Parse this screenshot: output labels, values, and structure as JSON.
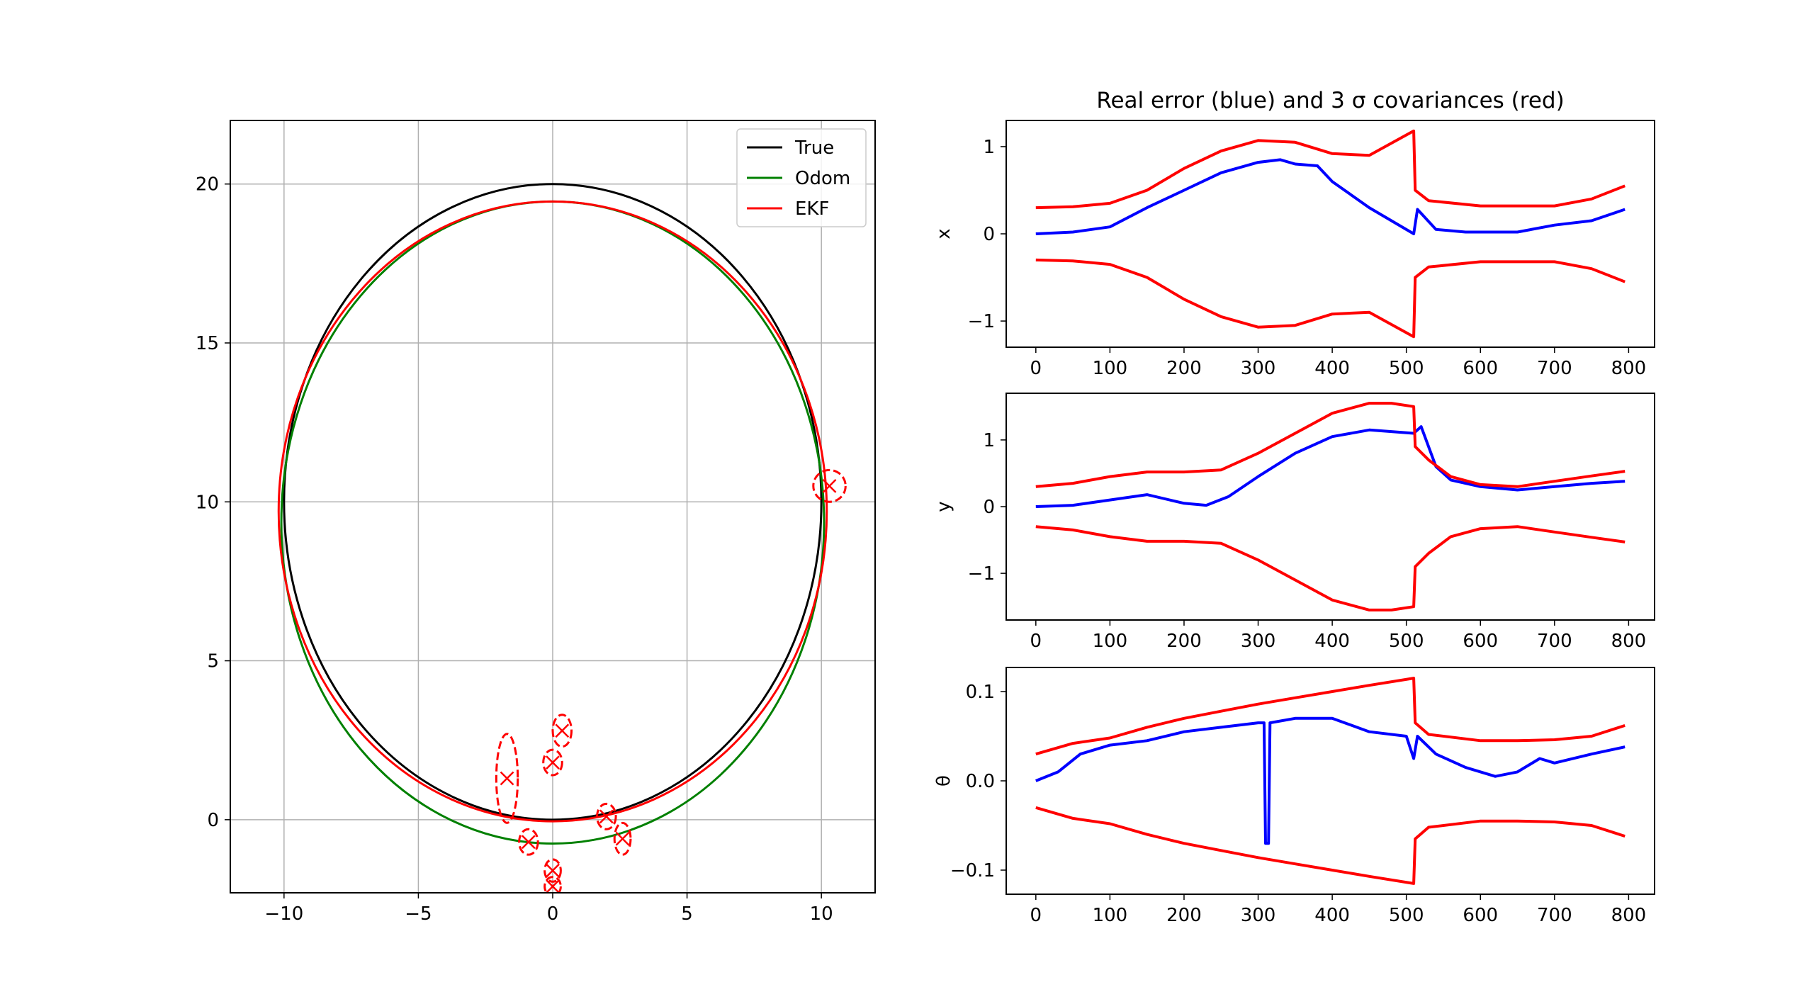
{
  "colors": {
    "true": "#000000",
    "odom": "#008000",
    "ekf": "#ff0000",
    "error": "#0000ff",
    "cov": "#ff0000",
    "grid": "#b0b0b0"
  },
  "chart_data": [
    {
      "type": "line",
      "legend": [
        "True",
        "Odom",
        "EKF"
      ],
      "legend_loc": "upper right",
      "grid": true,
      "xlim": [
        -12,
        12
      ],
      "ylim": [
        -2.3,
        22
      ],
      "xticks": [
        "−10",
        "−5",
        "0",
        "5",
        "10"
      ],
      "xtick_values": [
        -10,
        -5,
        0,
        5,
        10
      ],
      "yticks": [
        "0",
        "5",
        "10",
        "15",
        "20"
      ],
      "ytick_values": [
        0,
        5,
        10,
        15,
        20
      ],
      "series": [
        {
          "name": "True",
          "shape": "circle",
          "center": [
            0,
            10
          ],
          "radius_x": 10,
          "radius_y": 10
        },
        {
          "name": "Odom",
          "shape": "circle",
          "center": [
            0,
            9.35
          ],
          "radius_x": 10.1,
          "radius_y": 10.1
        },
        {
          "name": "EKF",
          "shape": "circle",
          "center": [
            0,
            9.7
          ],
          "radius_x": 10.2,
          "radius_y": 9.75
        }
      ],
      "landmark_ellipses": [
        {
          "x": 10.3,
          "y": 10.5,
          "rx": 0.6,
          "ry": 0.5
        },
        {
          "x": -1.7,
          "y": 1.3,
          "rx": 0.4,
          "ry": 1.4
        },
        {
          "x": 0.35,
          "y": 2.8,
          "rx": 0.35,
          "ry": 0.5
        },
        {
          "x": 0,
          "y": 1.8,
          "rx": 0.35,
          "ry": 0.4
        },
        {
          "x": 2,
          "y": 0.1,
          "rx": 0.35,
          "ry": 0.4
        },
        {
          "x": 2.6,
          "y": -0.6,
          "rx": 0.3,
          "ry": 0.5
        },
        {
          "x": -0.9,
          "y": -0.7,
          "rx": 0.35,
          "ry": 0.4
        },
        {
          "x": 0,
          "y": -1.6,
          "rx": 0.3,
          "ry": 0.35
        },
        {
          "x": 0,
          "y": -2.1,
          "rx": 0.3,
          "ry": 0.3
        }
      ]
    },
    {
      "type": "line",
      "title": "Real error (blue) and 3 σ covariances (red)",
      "ylabel": "x",
      "xlim": [
        -40,
        835
      ],
      "ylim": [
        -1.3,
        1.3
      ],
      "xticks": [
        "0",
        "100",
        "200",
        "300",
        "400",
        "500",
        "600",
        "700",
        "800"
      ],
      "xtick_values": [
        0,
        100,
        200,
        300,
        400,
        500,
        600,
        700,
        800
      ],
      "yticks": [
        "−1",
        "0",
        "1"
      ],
      "ytick_values": [
        -1,
        0,
        1
      ],
      "series": [
        {
          "name": "error",
          "x": [
            0,
            50,
            100,
            150,
            200,
            250,
            300,
            330,
            350,
            380,
            400,
            450,
            510,
            515,
            540,
            580,
            650,
            700,
            750,
            795
          ],
          "y": [
            0,
            0.02,
            0.08,
            0.3,
            0.5,
            0.7,
            0.82,
            0.85,
            0.8,
            0.78,
            0.6,
            0.3,
            0.0,
            0.28,
            0.05,
            0.02,
            0.02,
            0.1,
            0.15,
            0.28
          ]
        },
        {
          "name": "cov_upper",
          "x": [
            0,
            50,
            100,
            150,
            200,
            250,
            300,
            350,
            400,
            450,
            510,
            512,
            530,
            600,
            700,
            750,
            795
          ],
          "y": [
            0.3,
            0.31,
            0.35,
            0.5,
            0.75,
            0.95,
            1.07,
            1.05,
            0.92,
            0.9,
            1.18,
            0.5,
            0.38,
            0.32,
            0.32,
            0.4,
            0.55
          ]
        },
        {
          "name": "cov_lower",
          "x": [
            0,
            50,
            100,
            150,
            200,
            250,
            300,
            350,
            400,
            450,
            510,
            512,
            530,
            600,
            700,
            750,
            795
          ],
          "y": [
            -0.3,
            -0.31,
            -0.35,
            -0.5,
            -0.75,
            -0.95,
            -1.07,
            -1.05,
            -0.92,
            -0.9,
            -1.18,
            -0.5,
            -0.38,
            -0.32,
            -0.32,
            -0.4,
            -0.55
          ]
        }
      ]
    },
    {
      "type": "line",
      "ylabel": "y",
      "xlim": [
        -40,
        835
      ],
      "ylim": [
        -1.7,
        1.7
      ],
      "xticks": [
        "0",
        "100",
        "200",
        "300",
        "400",
        "500",
        "600",
        "700",
        "800"
      ],
      "xtick_values": [
        0,
        100,
        200,
        300,
        400,
        500,
        600,
        700,
        800
      ],
      "yticks": [
        "−1",
        "0",
        "1"
      ],
      "ytick_values": [
        -1,
        0,
        1
      ],
      "series": [
        {
          "name": "error",
          "x": [
            0,
            50,
            100,
            150,
            200,
            230,
            260,
            300,
            350,
            400,
            450,
            510,
            520,
            540,
            560,
            600,
            650,
            700,
            750,
            795
          ],
          "y": [
            0,
            0.02,
            0.1,
            0.18,
            0.05,
            0.02,
            0.15,
            0.45,
            0.8,
            1.05,
            1.15,
            1.1,
            1.2,
            0.6,
            0.4,
            0.3,
            0.25,
            0.3,
            0.35,
            0.38
          ]
        },
        {
          "name": "cov_upper",
          "x": [
            0,
            50,
            100,
            150,
            200,
            250,
            300,
            350,
            400,
            450,
            480,
            510,
            512,
            530,
            560,
            600,
            650,
            700,
            750,
            795
          ],
          "y": [
            0.3,
            0.35,
            0.45,
            0.52,
            0.52,
            0.55,
            0.8,
            1.1,
            1.4,
            1.55,
            1.55,
            1.5,
            0.9,
            0.7,
            0.45,
            0.33,
            0.3,
            0.38,
            0.46,
            0.53
          ]
        },
        {
          "name": "cov_lower",
          "x": [
            0,
            50,
            100,
            150,
            200,
            250,
            300,
            350,
            400,
            450,
            480,
            510,
            512,
            530,
            560,
            600,
            650,
            700,
            750,
            795
          ],
          "y": [
            -0.3,
            -0.35,
            -0.45,
            -0.52,
            -0.52,
            -0.55,
            -0.8,
            -1.1,
            -1.4,
            -1.55,
            -1.55,
            -1.5,
            -0.9,
            -0.7,
            -0.45,
            -0.33,
            -0.3,
            -0.38,
            -0.46,
            -0.53
          ]
        }
      ]
    },
    {
      "type": "line",
      "ylabel": "θ",
      "xlim": [
        -40,
        835
      ],
      "ylim": [
        -0.127,
        0.127
      ],
      "xticks": [
        "0",
        "100",
        "200",
        "300",
        "400",
        "500",
        "600",
        "700",
        "800"
      ],
      "xtick_values": [
        0,
        100,
        200,
        300,
        400,
        500,
        600,
        700,
        800
      ],
      "yticks": [
        "−0.1",
        "0.0",
        "0.1"
      ],
      "ytick_values": [
        -0.1,
        0.0,
        0.1
      ],
      "series": [
        {
          "name": "error",
          "x": [
            0,
            30,
            60,
            100,
            150,
            200,
            250,
            300,
            308,
            310,
            314,
            316,
            350,
            400,
            450,
            500,
            510,
            515,
            540,
            580,
            620,
            650,
            680,
            700,
            750,
            795
          ],
          "y": [
            0,
            0.01,
            0.03,
            0.04,
            0.045,
            0.055,
            0.06,
            0.065,
            0.065,
            -0.07,
            -0.07,
            0.065,
            0.07,
            0.07,
            0.055,
            0.05,
            0.025,
            0.05,
            0.03,
            0.015,
            0.005,
            0.01,
            0.025,
            0.02,
            0.03,
            0.038
          ]
        },
        {
          "name": "cov_upper",
          "x": [
            0,
            50,
            100,
            150,
            200,
            250,
            300,
            350,
            400,
            450,
            510,
            512,
            530,
            600,
            650,
            700,
            750,
            795
          ],
          "y": [
            0.03,
            0.042,
            0.048,
            0.06,
            0.07,
            0.078,
            0.086,
            0.093,
            0.1,
            0.107,
            0.115,
            0.065,
            0.052,
            0.045,
            0.045,
            0.046,
            0.05,
            0.062
          ]
        },
        {
          "name": "cov_lower",
          "x": [
            0,
            50,
            100,
            150,
            200,
            250,
            300,
            350,
            400,
            450,
            510,
            512,
            530,
            600,
            650,
            700,
            750,
            795
          ],
          "y": [
            -0.03,
            -0.042,
            -0.048,
            -0.06,
            -0.07,
            -0.078,
            -0.086,
            -0.093,
            -0.1,
            -0.107,
            -0.115,
            -0.065,
            -0.052,
            -0.045,
            -0.045,
            -0.046,
            -0.05,
            -0.062
          ]
        }
      ]
    }
  ]
}
